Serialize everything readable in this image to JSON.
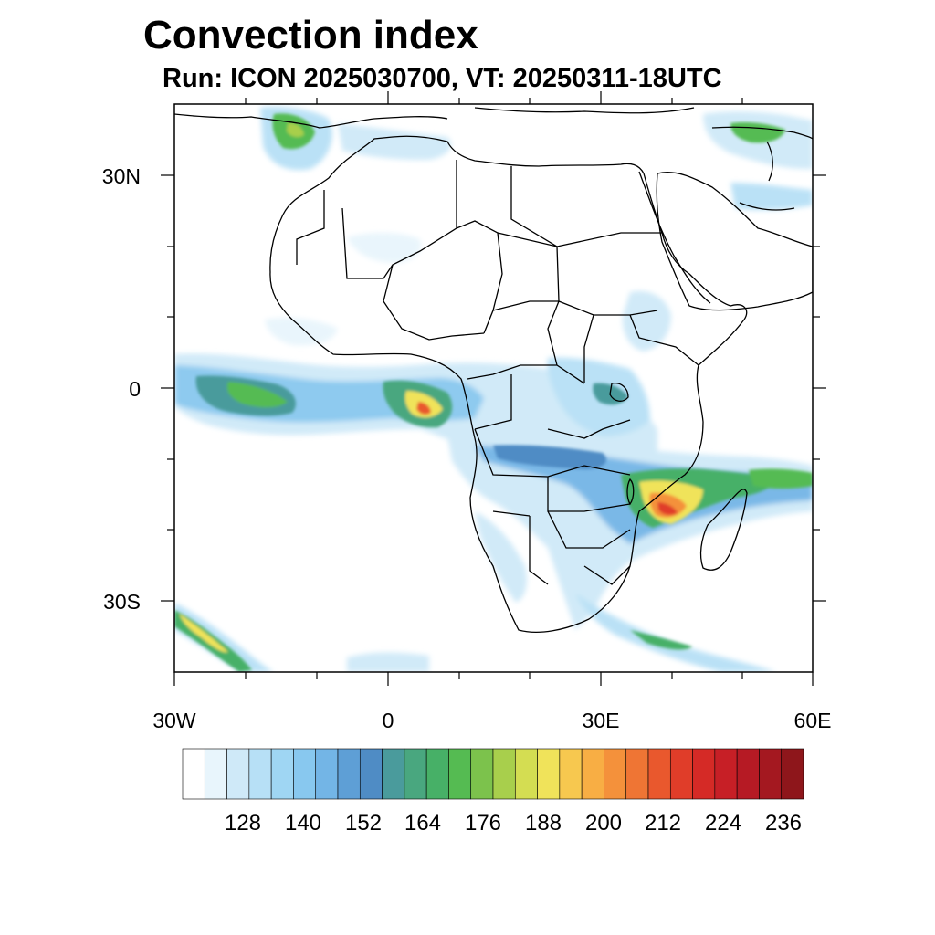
{
  "title": "Convection index",
  "subtitle": "Run: ICON 2025030700,  VT: 20250311-18UTC",
  "axes": {
    "lat_labels": [
      "30N",
      "0",
      "30S"
    ],
    "lon_labels": [
      "30W",
      "0",
      "30E",
      "60E"
    ]
  },
  "colorbar": {
    "tick_labels": [
      "128",
      "140",
      "152",
      "164",
      "176",
      "188",
      "200",
      "212",
      "224",
      "236"
    ],
    "colors": [
      "#ffffff",
      "#e8f5fc",
      "#cfe9f8",
      "#b7e0f6",
      "#9fd6f3",
      "#88c8ef",
      "#73b5e6",
      "#5e9fd6",
      "#4f8cc5",
      "#4a9b9c",
      "#49a77f",
      "#47b067",
      "#55bb52",
      "#7cc24c",
      "#a8cf4c",
      "#d4dd52",
      "#f0e35a",
      "#f7c84f",
      "#f8ae44",
      "#f4913b",
      "#ef7534",
      "#e9582d",
      "#e03d29",
      "#d52a26",
      "#c71f26",
      "#b61a24",
      "#a41820",
      "#8e161b"
    ]
  },
  "colors": {
    "land_outline": "#000000",
    "convection_light": "#cfe9f8",
    "convection_mid": "#5e9fd6",
    "convection_green": "#47b067",
    "convection_yellow": "#f0e35a",
    "convection_red": "#e03d29"
  }
}
